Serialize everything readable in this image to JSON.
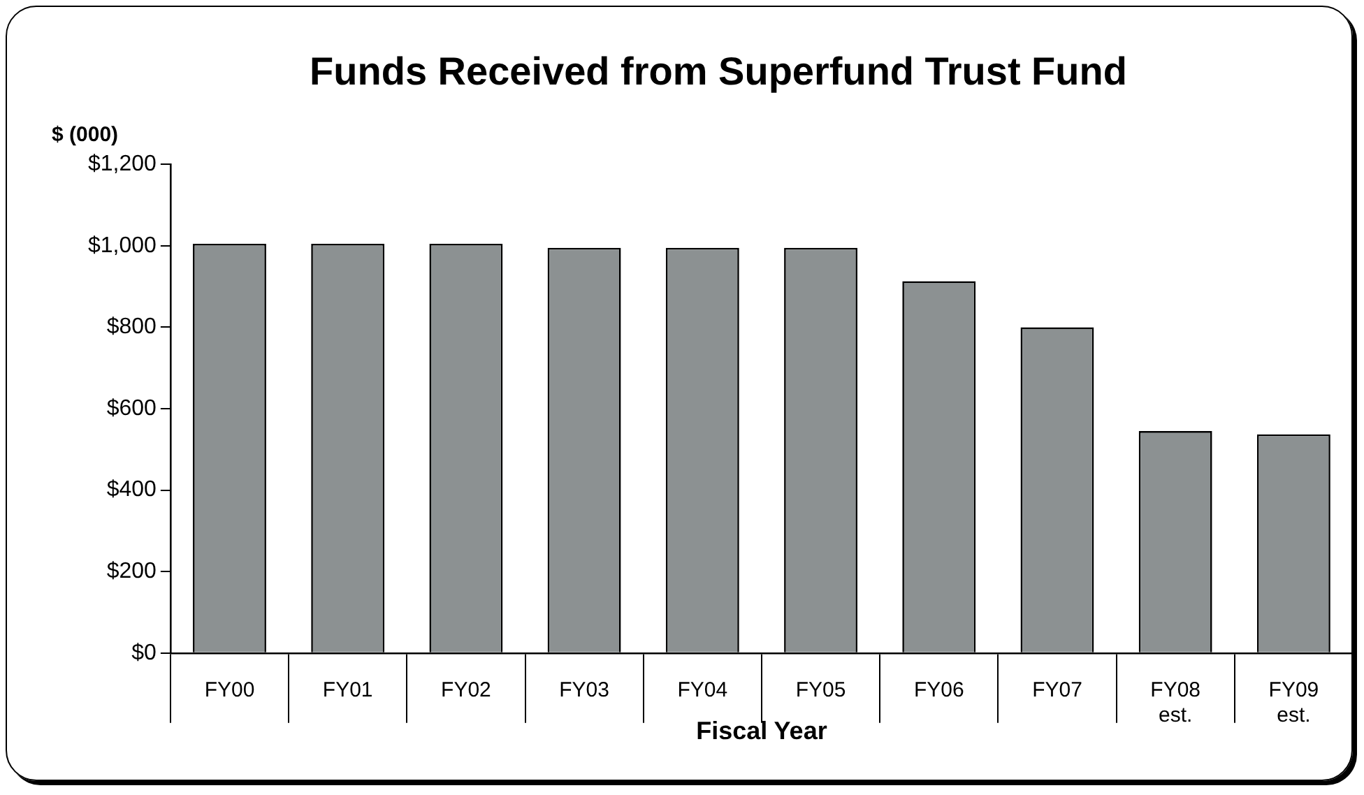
{
  "chart_data": {
    "type": "bar",
    "title": "Funds Received from Superfund Trust Fund",
    "ylabel": "$ (000)",
    "xlabel": "Fiscal Year",
    "categories": [
      "FY00",
      "FY01",
      "FY02",
      "FY03",
      "FY04",
      "FY05",
      "FY06",
      "FY07",
      "FY08\nest.",
      "FY09\nest."
    ],
    "values": [
      1005,
      1005,
      1005,
      995,
      995,
      995,
      913,
      800,
      545,
      537
    ],
    "color": "#8c9192",
    "ylim": [
      0,
      1200
    ],
    "yticks": [
      {
        "value": 0,
        "label": "$0"
      },
      {
        "value": 200,
        "label": "$200"
      },
      {
        "value": 400,
        "label": "$400"
      },
      {
        "value": 600,
        "label": "$600"
      },
      {
        "value": 800,
        "label": "$800"
      },
      {
        "value": 1000,
        "label": "$1,000"
      },
      {
        "value": 1200,
        "label": "$1,200"
      }
    ],
    "grid": false,
    "legend": false
  }
}
